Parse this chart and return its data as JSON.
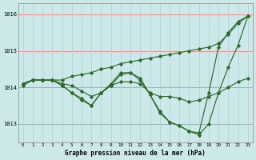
{
  "title": "Graphe pression niveau de la mer (hPa)",
  "background_color": "#cce8e8",
  "line_color": "#2d6a2d",
  "grid_color_h": "#f08080",
  "grid_color_v": "#b0d4d4",
  "text_color": "#000000",
  "xlim": [
    -0.5,
    23.5
  ],
  "ylim": [
    1012.5,
    1016.3
  ],
  "yticks": [
    1013,
    1014,
    1015,
    1016
  ],
  "xticks": [
    0,
    1,
    2,
    3,
    4,
    5,
    6,
    7,
    8,
    9,
    10,
    11,
    12,
    13,
    14,
    15,
    16,
    17,
    18,
    19,
    20,
    21,
    22,
    23
  ],
  "series": [
    [
      1014.1,
      1014.2,
      1014.2,
      1014.2,
      1014.2,
      1014.3,
      1014.35,
      1014.4,
      1014.5,
      1014.55,
      1014.65,
      1014.7,
      1014.75,
      1014.8,
      1014.85,
      1014.9,
      1014.95,
      1015.0,
      1015.05,
      1015.1,
      1015.2,
      1015.45,
      1015.75,
      1015.95
    ],
    [
      1014.1,
      1014.2,
      1014.2,
      1014.2,
      1014.1,
      1014.05,
      1013.9,
      1013.75,
      1013.85,
      1014.05,
      1014.15,
      1014.15,
      1014.1,
      1013.85,
      1013.75,
      1013.75,
      1013.7,
      1013.6,
      1013.65,
      1013.75,
      1013.85,
      1014.0,
      1014.15,
      1014.25
    ],
    [
      1014.1,
      1014.2,
      1014.2,
      1014.2,
      1014.05,
      1013.85,
      1013.65,
      1013.5,
      1013.85,
      1014.1,
      1014.4,
      1014.4,
      1014.25,
      1013.8,
      1013.3,
      1013.05,
      1012.95,
      1012.8,
      1012.75,
      1013.85,
      1015.1,
      1015.5,
      1015.8,
      1015.95
    ],
    [
      1014.05,
      1014.2,
      1014.2,
      1014.2,
      1014.05,
      1013.85,
      1013.7,
      1013.5,
      1013.85,
      1014.05,
      1014.35,
      1014.4,
      1014.2,
      1013.8,
      1013.35,
      1013.05,
      1012.95,
      1012.8,
      1012.7,
      1013.0,
      1013.85,
      1014.55,
      1015.15,
      1015.95
    ]
  ]
}
